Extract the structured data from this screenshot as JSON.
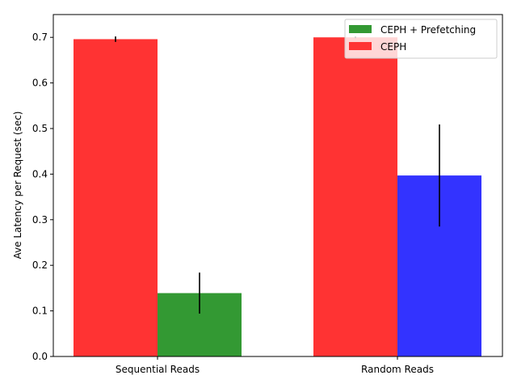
{
  "chart_data": {
    "type": "bar",
    "title": "",
    "xlabel": "",
    "ylabel": "Ave Latency per Request (sec)",
    "ylim": [
      0,
      0.75
    ],
    "yticks": [
      "0.0",
      "0.1",
      "0.2",
      "0.3",
      "0.4",
      "0.5",
      "0.6",
      "0.7"
    ],
    "grid": false,
    "legend_position": "top-right",
    "categories": [
      "Sequential Reads",
      "Random Reads"
    ],
    "series": [
      {
        "name": "CEPH",
        "values": [
          0.696,
          0.7
        ],
        "errors": [
          0.006,
          0.002
        ],
        "colors": [
          "#ff3333",
          "#ff3333"
        ]
      },
      {
        "name": "CEPH + Prefetching",
        "values": [
          0.139,
          0.397
        ],
        "errors": [
          0.045,
          0.112
        ],
        "colors": [
          "#339933",
          "#3333ff"
        ]
      }
    ],
    "legend": [
      {
        "label": "CEPH + Prefetching",
        "color": "#339933"
      },
      {
        "label": "CEPH",
        "color": "#ff3333"
      }
    ]
  }
}
